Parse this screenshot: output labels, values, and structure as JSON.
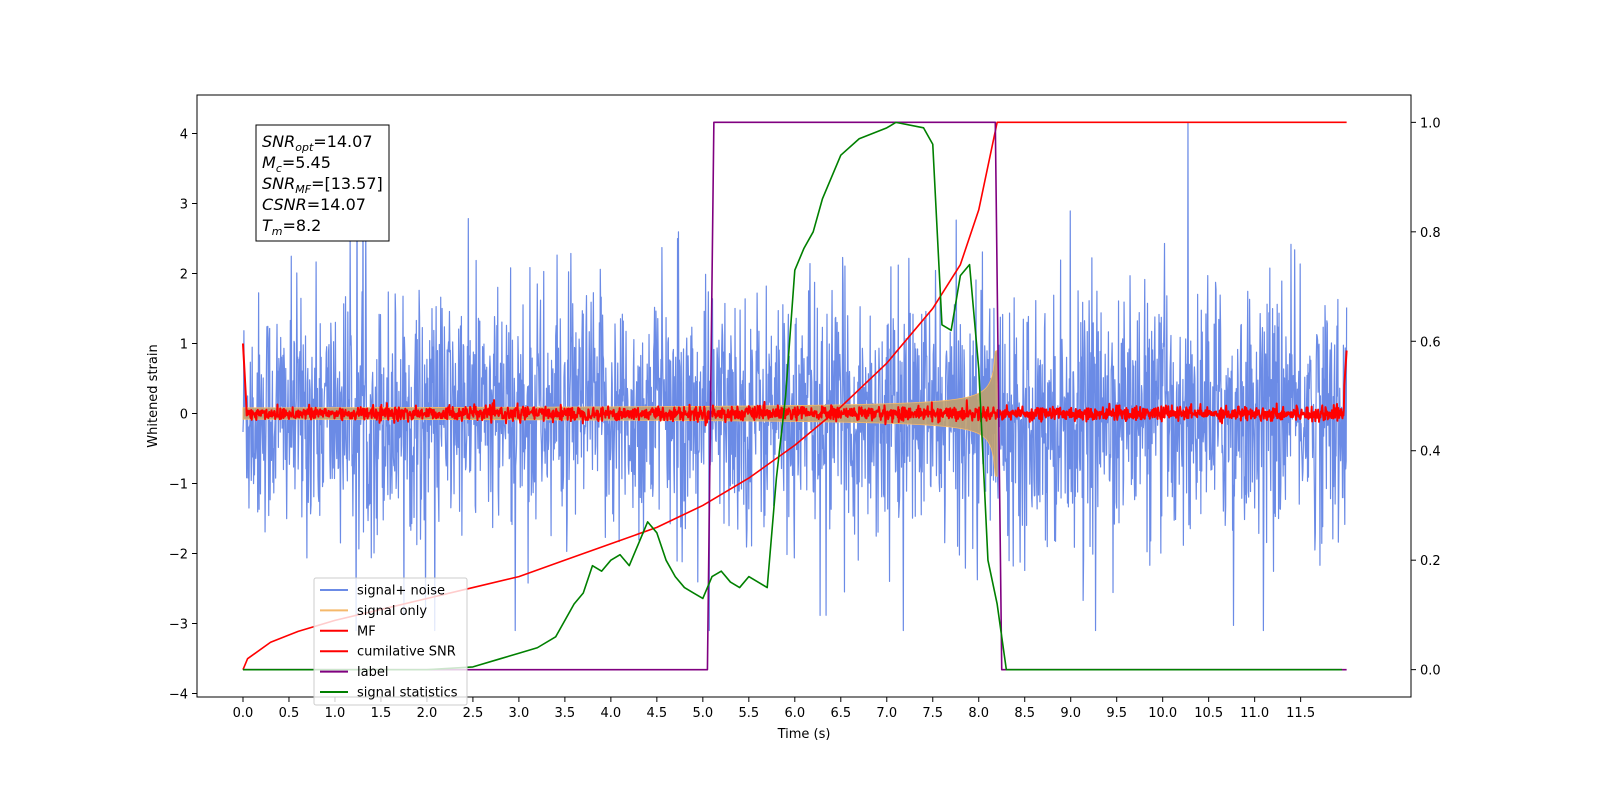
{
  "chart_data": {
    "type": "line",
    "title": "",
    "xlabel": "Time (s)",
    "ylabel": "Whitened strain",
    "xlim": [
      -0.5,
      12.7
    ],
    "ylim_left": [
      -4.05,
      4.55
    ],
    "ylim_right": [
      -0.05,
      1.05
    ],
    "x_ticks": [
      0.0,
      0.5,
      1.0,
      1.5,
      2.0,
      2.5,
      3.0,
      3.5,
      4.0,
      4.5,
      5.0,
      5.5,
      6.0,
      6.5,
      7.0,
      7.5,
      8.0,
      8.5,
      9.0,
      9.5,
      10.0,
      10.5,
      11.0,
      11.5
    ],
    "y_ticks_left": [
      -4,
      -3,
      -2,
      -1,
      0,
      1,
      2,
      3,
      4
    ],
    "y_ticks_right": [
      0.0,
      0.2,
      0.4,
      0.6,
      0.8,
      1.0
    ],
    "grid": false,
    "legend_position": "lower-left",
    "annotation": {
      "lines": [
        {
          "var": "SNR",
          "sub": "opt",
          "val": "=14.07"
        },
        {
          "var": "M",
          "sub": "c",
          "val": "=5.45"
        },
        {
          "var": "SNR",
          "sub": "MF",
          "val": "=[13.57]"
        },
        {
          "var": "CSNR",
          "sub": "",
          "val": "=14.07"
        },
        {
          "var": "T",
          "sub": "m",
          "val": "=8.2"
        }
      ]
    },
    "series": [
      {
        "name": "signal+ noise",
        "color": "#6b8be6",
        "axis": "left",
        "kind": "noise",
        "duration": 12.0,
        "std": 0.85,
        "merger_time": 8.2
      },
      {
        "name": "signal only",
        "color": "#f5b96b",
        "axis": "left",
        "kind": "chirp_envelope",
        "amplitude_start": 0.05,
        "amplitude_end": 0.9,
        "merger_time": 8.2
      },
      {
        "name": "MF",
        "color": "#ff0000",
        "axis": "left",
        "kind": "mf_noise",
        "std": 0.05
      },
      {
        "name": "cumilative SNR",
        "color": "#ff0000",
        "axis": "right",
        "x": [
          0.0,
          0.05,
          0.3,
          0.6,
          1.0,
          1.5,
          2.0,
          2.5,
          3.0,
          3.5,
          4.0,
          4.5,
          5.0,
          5.5,
          6.0,
          6.5,
          7.0,
          7.5,
          7.8,
          8.0,
          8.1,
          8.2,
          12.0
        ],
        "y": [
          0.0,
          0.02,
          0.05,
          0.07,
          0.09,
          0.11,
          0.13,
          0.15,
          0.17,
          0.2,
          0.23,
          0.26,
          0.3,
          0.35,
          0.41,
          0.48,
          0.56,
          0.66,
          0.74,
          0.84,
          0.92,
          1.0,
          1.0
        ]
      },
      {
        "name": "label",
        "color": "#800080",
        "axis": "right",
        "x": [
          0.0,
          5.05,
          5.12,
          8.18,
          8.25,
          12.0
        ],
        "y": [
          0.0,
          0.0,
          1.0,
          1.0,
          0.0,
          0.0
        ]
      },
      {
        "name": "signal statistics",
        "color": "#008000",
        "axis": "right",
        "x": [
          0.0,
          0.5,
          1.0,
          1.5,
          2.0,
          2.5,
          2.8,
          3.0,
          3.2,
          3.4,
          3.6,
          3.7,
          3.8,
          3.9,
          4.0,
          4.1,
          4.2,
          4.3,
          4.4,
          4.5,
          4.6,
          4.7,
          4.8,
          4.9,
          5.0,
          5.1,
          5.2,
          5.3,
          5.4,
          5.5,
          5.6,
          5.7,
          5.8,
          5.9,
          6.0,
          6.1,
          6.2,
          6.3,
          6.4,
          6.5,
          6.7,
          7.0,
          7.1,
          7.4,
          7.5,
          7.6,
          7.7,
          7.8,
          7.9,
          8.0,
          8.1,
          8.2,
          8.3,
          8.5,
          9.0,
          10.0,
          11.0,
          11.95
        ],
        "y": [
          0.0,
          0.0,
          0.0,
          0.0,
          0.0,
          0.005,
          0.02,
          0.03,
          0.04,
          0.06,
          0.12,
          0.14,
          0.19,
          0.18,
          0.2,
          0.21,
          0.19,
          0.23,
          0.27,
          0.25,
          0.2,
          0.17,
          0.15,
          0.14,
          0.13,
          0.17,
          0.18,
          0.16,
          0.15,
          0.17,
          0.16,
          0.15,
          0.35,
          0.5,
          0.73,
          0.77,
          0.8,
          0.86,
          0.9,
          0.94,
          0.97,
          0.99,
          1.0,
          0.99,
          0.96,
          0.63,
          0.62,
          0.72,
          0.74,
          0.55,
          0.2,
          0.12,
          0.0,
          0.0,
          0.0,
          0.0,
          0.0,
          0.0
        ]
      }
    ]
  }
}
